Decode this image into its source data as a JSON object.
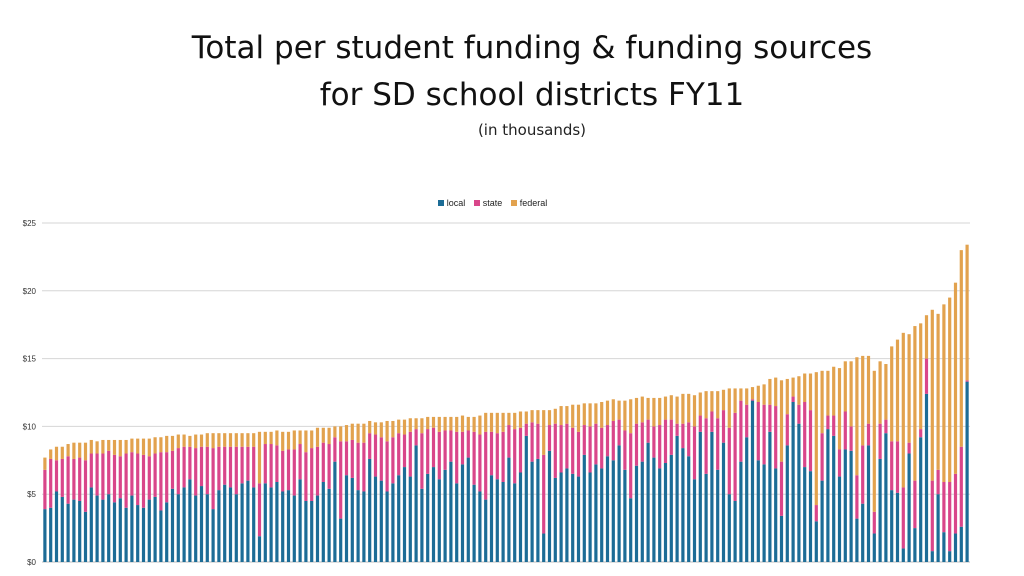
{
  "chart_data": {
    "type": "bar",
    "stacked": true,
    "title": "Total per student funding & funding sources",
    "title_line2": "for SD school districts FY11",
    "subtitle": "(in thousands)",
    "yticks": [
      "$0",
      "$5",
      "$10",
      "$15",
      "$20",
      "$25"
    ],
    "ylim": [
      0,
      25
    ],
    "grid": true,
    "legend_position": "top",
    "series": [
      {
        "name": "local",
        "color": "#1c6c96"
      },
      {
        "name": "state",
        "color": "#d9468a"
      },
      {
        "name": "federal",
        "color": "#e2a24e"
      }
    ],
    "rows": [
      [
        3.9,
        2.9,
        0.9
      ],
      [
        4.0,
        3.6,
        0.7
      ],
      [
        5.2,
        2.3,
        1.0
      ],
      [
        4.8,
        2.8,
        0.9
      ],
      [
        4.3,
        3.5,
        0.9
      ],
      [
        4.6,
        3.0,
        1.2
      ],
      [
        4.5,
        3.2,
        1.1
      ],
      [
        3.7,
        3.8,
        1.3
      ],
      [
        5.5,
        2.5,
        1.0
      ],
      [
        4.9,
        3.1,
        0.9
      ],
      [
        4.6,
        3.4,
        1.0
      ],
      [
        5.0,
        3.2,
        0.8
      ],
      [
        4.4,
        3.5,
        1.1
      ],
      [
        4.7,
        3.1,
        1.2
      ],
      [
        4.0,
        4.0,
        1.0
      ],
      [
        4.9,
        3.2,
        1.0
      ],
      [
        4.2,
        3.8,
        1.1
      ],
      [
        4.0,
        3.9,
        1.2
      ],
      [
        4.6,
        3.2,
        1.3
      ],
      [
        4.8,
        3.2,
        1.2
      ],
      [
        3.8,
        4.3,
        1.1
      ],
      [
        4.4,
        3.7,
        1.2
      ],
      [
        5.4,
        2.8,
        1.1
      ],
      [
        5.0,
        3.4,
        1.0
      ],
      [
        5.5,
        3.0,
        0.9
      ],
      [
        6.1,
        2.4,
        0.8
      ],
      [
        4.9,
        3.5,
        1.0
      ],
      [
        5.6,
        2.9,
        0.9
      ],
      [
        5.0,
        3.5,
        1.0
      ],
      [
        3.9,
        4.5,
        1.1
      ],
      [
        5.3,
        3.2,
        1.0
      ],
      [
        5.7,
        2.8,
        1.0
      ],
      [
        5.5,
        3.0,
        1.0
      ],
      [
        5.0,
        3.5,
        1.0
      ],
      [
        5.8,
        2.7,
        1.0
      ],
      [
        6.0,
        2.5,
        1.0
      ],
      [
        5.5,
        3.0,
        1.0
      ],
      [
        1.9,
        3.9,
        3.8
      ],
      [
        5.8,
        2.9,
        0.9
      ],
      [
        5.5,
        3.2,
        0.9
      ],
      [
        5.9,
        2.7,
        1.1
      ],
      [
        5.2,
        3.0,
        1.4
      ],
      [
        5.3,
        3.0,
        1.3
      ],
      [
        4.9,
        3.4,
        1.4
      ],
      [
        6.1,
        2.6,
        1.0
      ],
      [
        4.5,
        3.6,
        1.6
      ],
      [
        4.5,
        3.9,
        1.3
      ],
      [
        4.9,
        3.6,
        1.4
      ],
      [
        5.9,
        2.9,
        1.1
      ],
      [
        5.4,
        3.3,
        1.2
      ],
      [
        7.4,
        1.8,
        0.8
      ],
      [
        3.2,
        5.7,
        1.1
      ],
      [
        6.4,
        2.5,
        1.2
      ],
      [
        6.2,
        2.8,
        1.2
      ],
      [
        5.3,
        3.5,
        1.4
      ],
      [
        5.2,
        3.6,
        1.4
      ],
      [
        7.6,
        1.9,
        0.9
      ],
      [
        6.3,
        3.1,
        0.9
      ],
      [
        6.0,
        3.2,
        1.1
      ],
      [
        5.2,
        3.7,
        1.5
      ],
      [
        5.8,
        3.4,
        1.2
      ],
      [
        6.4,
        3.1,
        1.0
      ],
      [
        7.0,
        2.4,
        1.1
      ],
      [
        6.3,
        3.3,
        1.0
      ],
      [
        8.6,
        1.2,
        0.8
      ],
      [
        5.4,
        4.1,
        1.1
      ],
      [
        6.5,
        3.3,
        0.9
      ],
      [
        7.0,
        2.9,
        0.8
      ],
      [
        6.1,
        3.5,
        1.1
      ],
      [
        6.8,
        2.9,
        1.0
      ],
      [
        7.4,
        2.3,
        1.0
      ],
      [
        5.8,
        3.8,
        1.1
      ],
      [
        7.2,
        2.4,
        1.2
      ],
      [
        7.7,
        2.0,
        1.0
      ],
      [
        5.7,
        3.9,
        1.1
      ],
      [
        5.2,
        4.2,
        1.4
      ],
      [
        4.6,
        5.0,
        1.4
      ],
      [
        6.4,
        3.2,
        1.4
      ],
      [
        6.1,
        3.4,
        1.5
      ],
      [
        5.9,
        3.7,
        1.4
      ],
      [
        7.7,
        2.4,
        0.9
      ],
      [
        5.8,
        4.0,
        1.2
      ],
      [
        6.6,
        3.3,
        1.2
      ],
      [
        9.3,
        0.9,
        0.9
      ],
      [
        7.4,
        2.9,
        0.9
      ],
      [
        7.6,
        2.6,
        1.0
      ],
      [
        2.1,
        5.8,
        3.3
      ],
      [
        8.2,
        1.9,
        1.1
      ],
      [
        6.2,
        4.0,
        1.1
      ],
      [
        6.6,
        3.5,
        1.4
      ],
      [
        6.9,
        3.3,
        1.3
      ],
      [
        6.5,
        3.4,
        1.7
      ],
      [
        6.3,
        3.3,
        2.0
      ],
      [
        7.9,
        2.2,
        1.6
      ],
      [
        6.6,
        3.4,
        1.7
      ],
      [
        7.2,
        3.0,
        1.5
      ],
      [
        6.9,
        3.0,
        1.9
      ],
      [
        7.8,
        2.3,
        1.8
      ],
      [
        7.5,
        2.9,
        1.6
      ],
      [
        8.6,
        1.9,
        1.4
      ],
      [
        6.8,
        2.9,
        2.2
      ],
      [
        4.7,
        4.8,
        2.5
      ],
      [
        7.1,
        3.1,
        1.9
      ],
      [
        7.4,
        2.9,
        1.9
      ],
      [
        8.8,
        1.7,
        1.6
      ],
      [
        7.7,
        2.3,
        2.1
      ],
      [
        6.9,
        3.2,
        2.0
      ],
      [
        7.3,
        3.2,
        1.7
      ],
      [
        7.9,
        2.6,
        1.8
      ],
      [
        9.3,
        0.9,
        2.0
      ],
      [
        8.4,
        1.8,
        2.2
      ],
      [
        7.8,
        2.5,
        2.1
      ],
      [
        6.1,
        3.9,
        2.3
      ],
      [
        9.6,
        1.2,
        1.7
      ],
      [
        6.5,
        4.1,
        2.0
      ],
      [
        9.6,
        1.5,
        1.5
      ],
      [
        6.8,
        3.8,
        2.0
      ],
      [
        8.8,
        2.4,
        1.5
      ],
      [
        5.0,
        4.9,
        2.9
      ],
      [
        4.5,
        6.5,
        1.8
      ],
      [
        7.4,
        4.5,
        0.9
      ],
      [
        9.2,
        2.4,
        1.2
      ],
      [
        11.9,
        0.1,
        0.9
      ],
      [
        7.5,
        4.3,
        1.2
      ],
      [
        7.2,
        4.4,
        1.5
      ],
      [
        9.6,
        2.0,
        1.9
      ],
      [
        6.9,
        4.6,
        2.1
      ],
      [
        3.4,
        4.0,
        6.0
      ],
      [
        8.6,
        2.3,
        2.6
      ],
      [
        11.8,
        0.4,
        1.4
      ],
      [
        10.2,
        1.4,
        2.1
      ],
      [
        7.0,
        4.8,
        2.1
      ],
      [
        6.7,
        4.5,
        2.7
      ],
      [
        3.0,
        1.2,
        9.8
      ],
      [
        6.0,
        3.5,
        4.6
      ],
      [
        9.8,
        1.0,
        3.3
      ],
      [
        9.3,
        1.5,
        3.6
      ],
      [
        6.3,
        2.0,
        6.0
      ],
      [
        8.3,
        2.8,
        3.7
      ],
      [
        8.2,
        1.8,
        4.8
      ],
      [
        3.2,
        3.2,
        8.7
      ],
      [
        4.3,
        4.3,
        6.6
      ],
      [
        8.6,
        1.6,
        5.0
      ],
      [
        2.1,
        1.6,
        10.4
      ],
      [
        7.6,
        2.6,
        4.6
      ],
      [
        9.5,
        1.0,
        4.1
      ],
      [
        5.3,
        3.6,
        7.0
      ],
      [
        5.1,
        3.8,
        7.5
      ],
      [
        1.0,
        4.5,
        11.4
      ],
      [
        8.0,
        0.8,
        8.0
      ],
      [
        2.5,
        3.5,
        11.4
      ],
      [
        9.2,
        0.6,
        7.8
      ],
      [
        12.4,
        2.6,
        3.2
      ],
      [
        0.8,
        5.2,
        12.6
      ],
      [
        5.0,
        1.8,
        11.5
      ],
      [
        2.2,
        3.7,
        13.1
      ],
      [
        0.8,
        5.1,
        13.6
      ],
      [
        2.1,
        4.4,
        14.1
      ],
      [
        2.6,
        5.9,
        14.5
      ],
      [
        13.3,
        0.1,
        10.0
      ]
    ]
  }
}
